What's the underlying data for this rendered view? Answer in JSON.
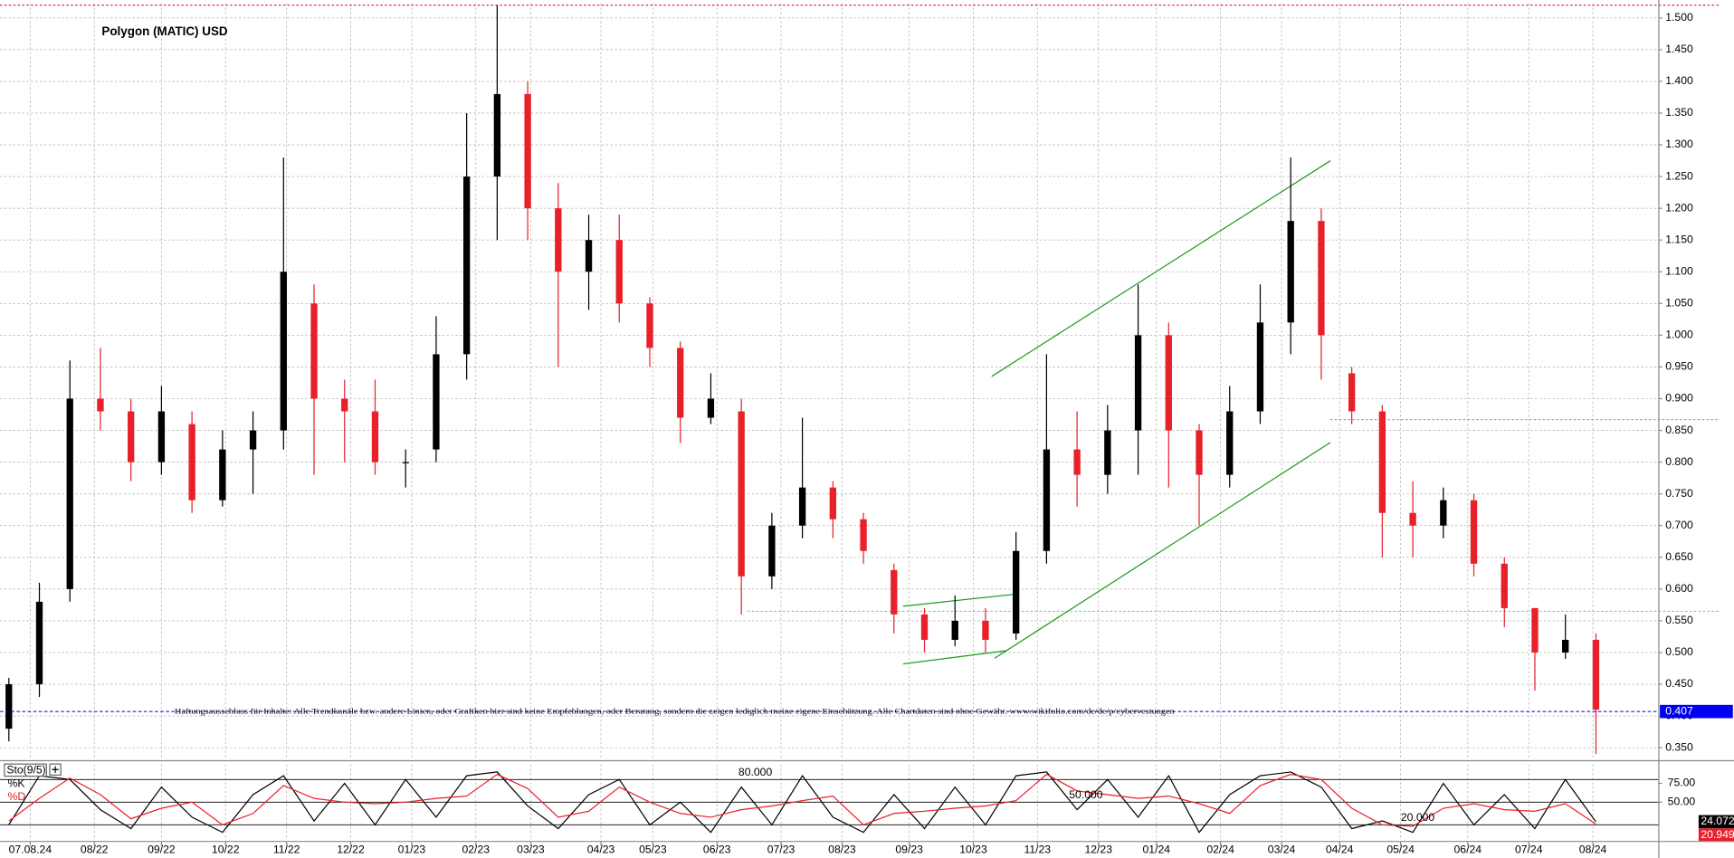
{
  "chart_data": [
    {
      "type": "candlestick",
      "title": "Polygon (MATIC) USD",
      "annotation": "Haftungsausschluss für Inhalte: Alle Trendkanäle bzw. andere Linien, oder Grafiken hier sind keine Empfehlungen, oder Beratung, sondern die zeigen lediglich meine eigene Einschätzung. Alle Chartdaten sind ohne Gewähr. www.wikifolio.com/de/de/p/cybervestungen",
      "open": [
        0.38,
        0.45,
        0.6,
        0.9,
        0.88,
        0.8,
        0.86,
        0.74,
        0.82,
        0.85,
        1.05,
        0.9,
        0.88,
        0.8,
        0.82,
        0.97,
        1.25,
        1.38,
        1.2,
        1.1,
        1.15,
        1.05,
        0.98,
        0.87,
        0.88,
        0.62,
        0.7,
        0.76,
        0.71,
        0.63,
        0.56,
        0.52,
        0.55,
        0.53,
        0.66,
        0.82,
        0.78,
        0.85,
        1.0,
        0.85,
        0.78,
        0.88,
        1.02,
        1.18,
        0.94,
        0.88,
        0.72,
        0.7,
        0.74,
        0.64,
        0.57,
        0.5,
        0.52
      ],
      "high": [
        0.46,
        0.61,
        0.96,
        0.98,
        0.9,
        0.92,
        0.88,
        0.85,
        0.88,
        1.28,
        1.08,
        0.93,
        0.93,
        0.82,
        1.03,
        1.35,
        1.52,
        1.4,
        1.24,
        1.19,
        1.19,
        1.06,
        0.99,
        0.94,
        0.9,
        0.72,
        0.87,
        0.77,
        0.72,
        0.64,
        0.57,
        0.59,
        0.57,
        0.69,
        0.97,
        0.88,
        0.89,
        1.08,
        1.02,
        0.86,
        0.92,
        1.08,
        1.28,
        1.2,
        0.95,
        0.89,
        0.77,
        0.76,
        0.75,
        0.65,
        0.57,
        0.56,
        0.53
      ],
      "low": [
        0.36,
        0.43,
        0.58,
        0.85,
        0.77,
        0.78,
        0.72,
        0.73,
        0.75,
        0.82,
        0.78,
        0.8,
        0.78,
        0.76,
        0.8,
        0.93,
        1.15,
        1.15,
        0.95,
        1.04,
        1.02,
        0.95,
        0.83,
        0.86,
        0.56,
        0.6,
        0.68,
        0.68,
        0.64,
        0.53,
        0.5,
        0.51,
        0.5,
        0.52,
        0.64,
        0.73,
        0.75,
        0.78,
        0.76,
        0.7,
        0.76,
        0.86,
        0.97,
        0.93,
        0.86,
        0.65,
        0.65,
        0.68,
        0.62,
        0.54,
        0.44,
        0.49,
        0.34
      ],
      "close": [
        0.45,
        0.58,
        0.9,
        0.88,
        0.8,
        0.88,
        0.74,
        0.82,
        0.85,
        1.1,
        0.9,
        0.88,
        0.8,
        0.8,
        0.97,
        1.25,
        1.38,
        1.2,
        1.1,
        1.15,
        1.05,
        0.98,
        0.87,
        0.9,
        0.62,
        0.7,
        0.76,
        0.71,
        0.66,
        0.56,
        0.52,
        0.55,
        0.52,
        0.66,
        0.82,
        0.78,
        0.85,
        1.0,
        0.85,
        0.78,
        0.88,
        1.02,
        1.18,
        1.0,
        0.88,
        0.72,
        0.7,
        0.74,
        0.64,
        0.57,
        0.5,
        0.52,
        0.41
      ],
      "up_color": "#000000",
      "down_color": "#e8202a",
      "current_value": 0.407,
      "current_color": "#0000ee",
      "levels": [
        {
          "value": 1.52,
          "color": "#c00000"
        },
        {
          "value": 0.565,
          "color": "#40d0a0",
          "x_start": 24.2
        },
        {
          "value": 0.867,
          "color": "#e07070",
          "x_start": 43.3
        }
      ],
      "trendlines": [
        {
          "x": [
            32.2,
            43.3
          ],
          "y": [
            0.935,
            1.275
          ]
        },
        {
          "x": [
            32.3,
            43.3
          ],
          "y": [
            0.491,
            0.831
          ]
        },
        {
          "x": [
            29.3,
            33.0
          ],
          "y": [
            0.573,
            0.592
          ]
        },
        {
          "x": [
            29.3,
            32.7
          ],
          "y": [
            0.482,
            0.503
          ]
        }
      ],
      "trend_color": "#1a9a1a",
      "xlim": [
        -0.29,
        54.06
      ],
      "ylim": [
        0.333,
        1.523
      ],
      "xticks": [
        {
          "value": 0.7,
          "label": "07.08.24"
        },
        {
          "value": 2.8,
          "label": "08/22"
        },
        {
          "value": 5.0,
          "label": "09/22"
        },
        {
          "value": 7.1,
          "label": "10/22"
        },
        {
          "value": 9.1,
          "label": "11/22"
        },
        {
          "value": 11.2,
          "label": "12/22"
        },
        {
          "value": 13.2,
          "label": "01/23"
        },
        {
          "value": 15.3,
          "label": "02/23"
        },
        {
          "value": 17.1,
          "label": "03/23"
        },
        {
          "value": 19.4,
          "label": "04/23"
        },
        {
          "value": 21.1,
          "label": "05/23"
        },
        {
          "value": 23.2,
          "label": "06/23"
        },
        {
          "value": 25.3,
          "label": "07/23"
        },
        {
          "value": 27.3,
          "label": "08/23"
        },
        {
          "value": 29.5,
          "label": "09/23"
        },
        {
          "value": 31.6,
          "label": "10/23"
        },
        {
          "value": 33.7,
          "label": "11/23"
        },
        {
          "value": 35.7,
          "label": "12/23"
        },
        {
          "value": 37.6,
          "label": "01/24"
        },
        {
          "value": 39.7,
          "label": "02/24"
        },
        {
          "value": 41.7,
          "label": "03/24"
        },
        {
          "value": 43.6,
          "label": "04/24"
        },
        {
          "value": 45.6,
          "label": "05/24"
        },
        {
          "value": 47.8,
          "label": "06/24"
        },
        {
          "value": 49.8,
          "label": "07/24"
        },
        {
          "value": 51.9,
          "label": "08/24"
        }
      ],
      "yticks": [
        {
          "value": 0.35,
          "label": "0.350"
        },
        {
          "value": 0.4,
          "label": "0.400"
        },
        {
          "value": 0.45,
          "label": "0.450"
        },
        {
          "value": 0.5,
          "label": "0.500"
        },
        {
          "value": 0.55,
          "label": "0.550"
        },
        {
          "value": 0.6,
          "label": "0.600"
        },
        {
          "value": 0.65,
          "label": "0.650"
        },
        {
          "value": 0.7,
          "label": "0.700"
        },
        {
          "value": 0.75,
          "label": "0.750"
        },
        {
          "value": 0.8,
          "label": "0.800"
        },
        {
          "value": 0.85,
          "label": "0.850"
        },
        {
          "value": 0.9,
          "label": "0.900"
        },
        {
          "value": 0.95,
          "label": "0.950"
        },
        {
          "value": 1.0,
          "label": "1.000"
        },
        {
          "value": 1.05,
          "label": "1.050"
        },
        {
          "value": 1.1,
          "label": "1.100"
        },
        {
          "value": 1.15,
          "label": "1.150"
        },
        {
          "value": 1.2,
          "label": "1.200"
        },
        {
          "value": 1.25,
          "label": "1.250"
        },
        {
          "value": 1.3,
          "label": "1.300"
        },
        {
          "value": 1.35,
          "label": "1.350"
        },
        {
          "value": 1.4,
          "label": "1.400"
        },
        {
          "value": 1.45,
          "label": "1.450"
        },
        {
          "value": 1.5,
          "label": "1.500"
        }
      ],
      "grid": true
    },
    {
      "type": "line",
      "title": "Sto(9/5)",
      "series": [
        {
          "name": "%K",
          "color": "#000000",
          "values": [
            20,
            85,
            80,
            40,
            15,
            70,
            30,
            10,
            60,
            85,
            25,
            75,
            20,
            80,
            30,
            85,
            90,
            45,
            15,
            60,
            80,
            20,
            50,
            10,
            70,
            20,
            85,
            30,
            10,
            60,
            15,
            70,
            20,
            85,
            90,
            40,
            80,
            30,
            85,
            10,
            60,
            85,
            90,
            70,
            15,
            25,
            10,
            75,
            20,
            60,
            15,
            80,
            24.072
          ]
        },
        {
          "name": "%D",
          "color": "#e8202a",
          "values": [
            25,
            55,
            82,
            60,
            28,
            42,
            50,
            20,
            35,
            72,
            55,
            50,
            48,
            50,
            55,
            58,
            87,
            68,
            30,
            38,
            70,
            50,
            35,
            30,
            40,
            45,
            52,
            58,
            20,
            35,
            38,
            42,
            45,
            52,
            87,
            65,
            60,
            55,
            58,
            48,
            35,
            72,
            87,
            80,
            42,
            20,
            18,
            42,
            48,
            40,
            38,
            48,
            20.949
          ]
        }
      ],
      "ylim": [
        0,
        100
      ],
      "yticks": [
        {
          "value": 75,
          "label": "75.00"
        },
        {
          "value": 50,
          "label": "50.00"
        }
      ],
      "levels": [
        {
          "value": 80,
          "label": "80.000"
        },
        {
          "value": 50,
          "label": "50.000"
        },
        {
          "value": 20,
          "label": "20.000"
        }
      ],
      "grid": true
    }
  ]
}
